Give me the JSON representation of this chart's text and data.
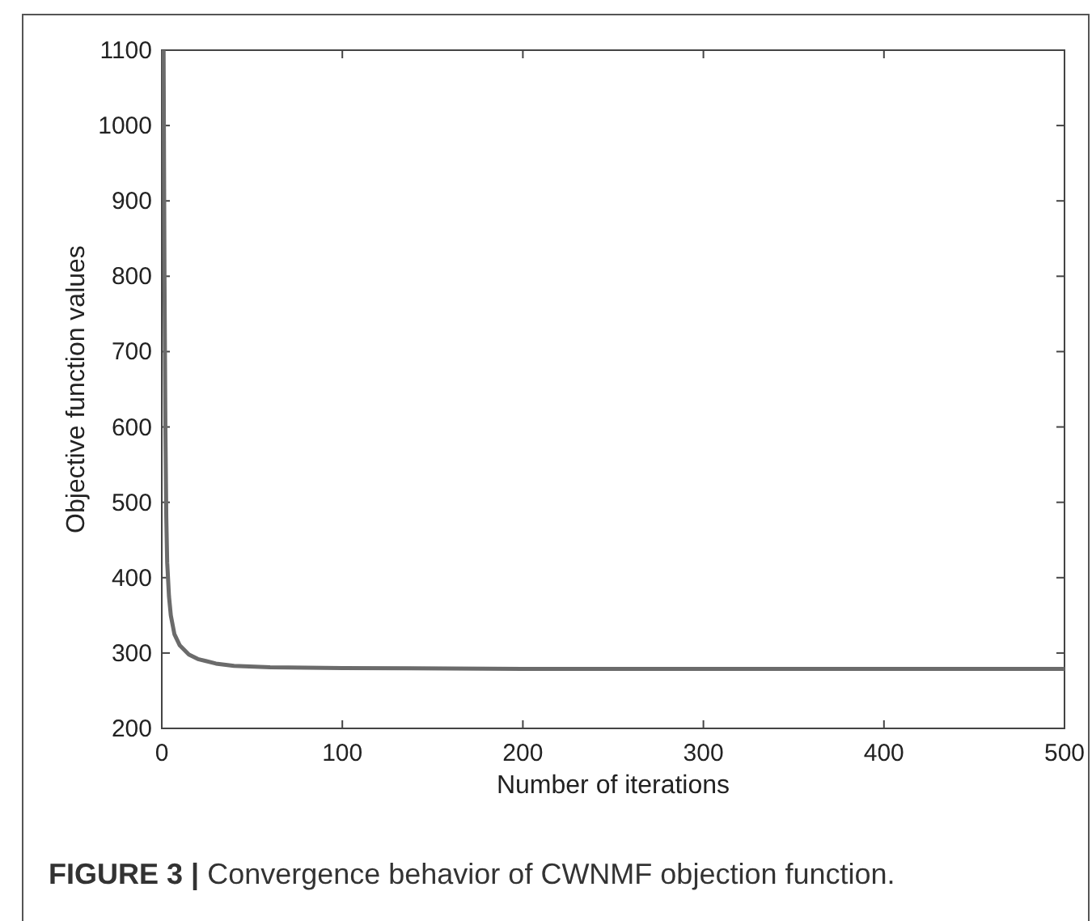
{
  "chart_data": {
    "type": "line",
    "xlabel": "Number of iterations",
    "ylabel": "Objective function values",
    "annotations": [
      "FIGURE 3 | Convergence behavior of CWNMF objection function."
    ],
    "x": [
      1,
      1.5,
      2,
      2.5,
      3,
      4,
      5,
      7,
      10,
      15,
      20,
      30,
      40,
      60,
      100,
      200,
      300,
      500
    ],
    "series": [
      {
        "color": "#6b6b6b",
        "values": [
          1100,
          800,
          600,
          480,
          420,
          375,
          350,
          325,
          310,
          298,
          292,
          286,
          283,
          281,
          280,
          279,
          279,
          279
        ]
      }
    ],
    "xlim": [
      0,
      500
    ],
    "xticks": [
      0,
      100,
      200,
      300,
      400,
      500
    ],
    "ylim": [
      200,
      1100
    ],
    "yticks": [
      200,
      300,
      400,
      500,
      600,
      700,
      800,
      900,
      1000,
      1100
    ],
    "grid": false,
    "marker": "none",
    "line_style": "solid"
  }
}
